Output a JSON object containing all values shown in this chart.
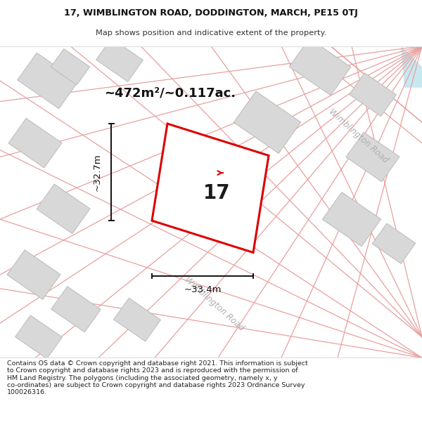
{
  "title_line1": "17, WIMBLINGTON ROAD, DODDINGTON, MARCH, PE15 0TJ",
  "title_line2": "Map shows position and indicative extent of the property.",
  "area_label": "~472m²/~0.117ac.",
  "width_label": "~33.4m",
  "height_label": "~32.7m",
  "number_label": "17",
  "footer_text": "Contains OS data © Crown copyright and database right 2021. This information is subject to Crown copyright and database rights 2023 and is reproduced with the permission of HM Land Registry. The polygons (including the associated geometry, namely x, y co-ordinates) are subject to Crown copyright and database rights 2023 Ordnance Survey 100026316.",
  "bg_color": "#ffffff",
  "map_bg": "#ffffff",
  "plot_polygon_color": "#dd0000",
  "road_line_color": "#e8a0a0",
  "building_color": "#d8d8d8",
  "building_edge_color": "#bbbbbb",
  "road_label_color": "#b0b0b0",
  "title_color": "#111111",
  "footer_color": "#222222",
  "water_color": "#c8e8f0",
  "map_facecolor": "#faf8f8"
}
